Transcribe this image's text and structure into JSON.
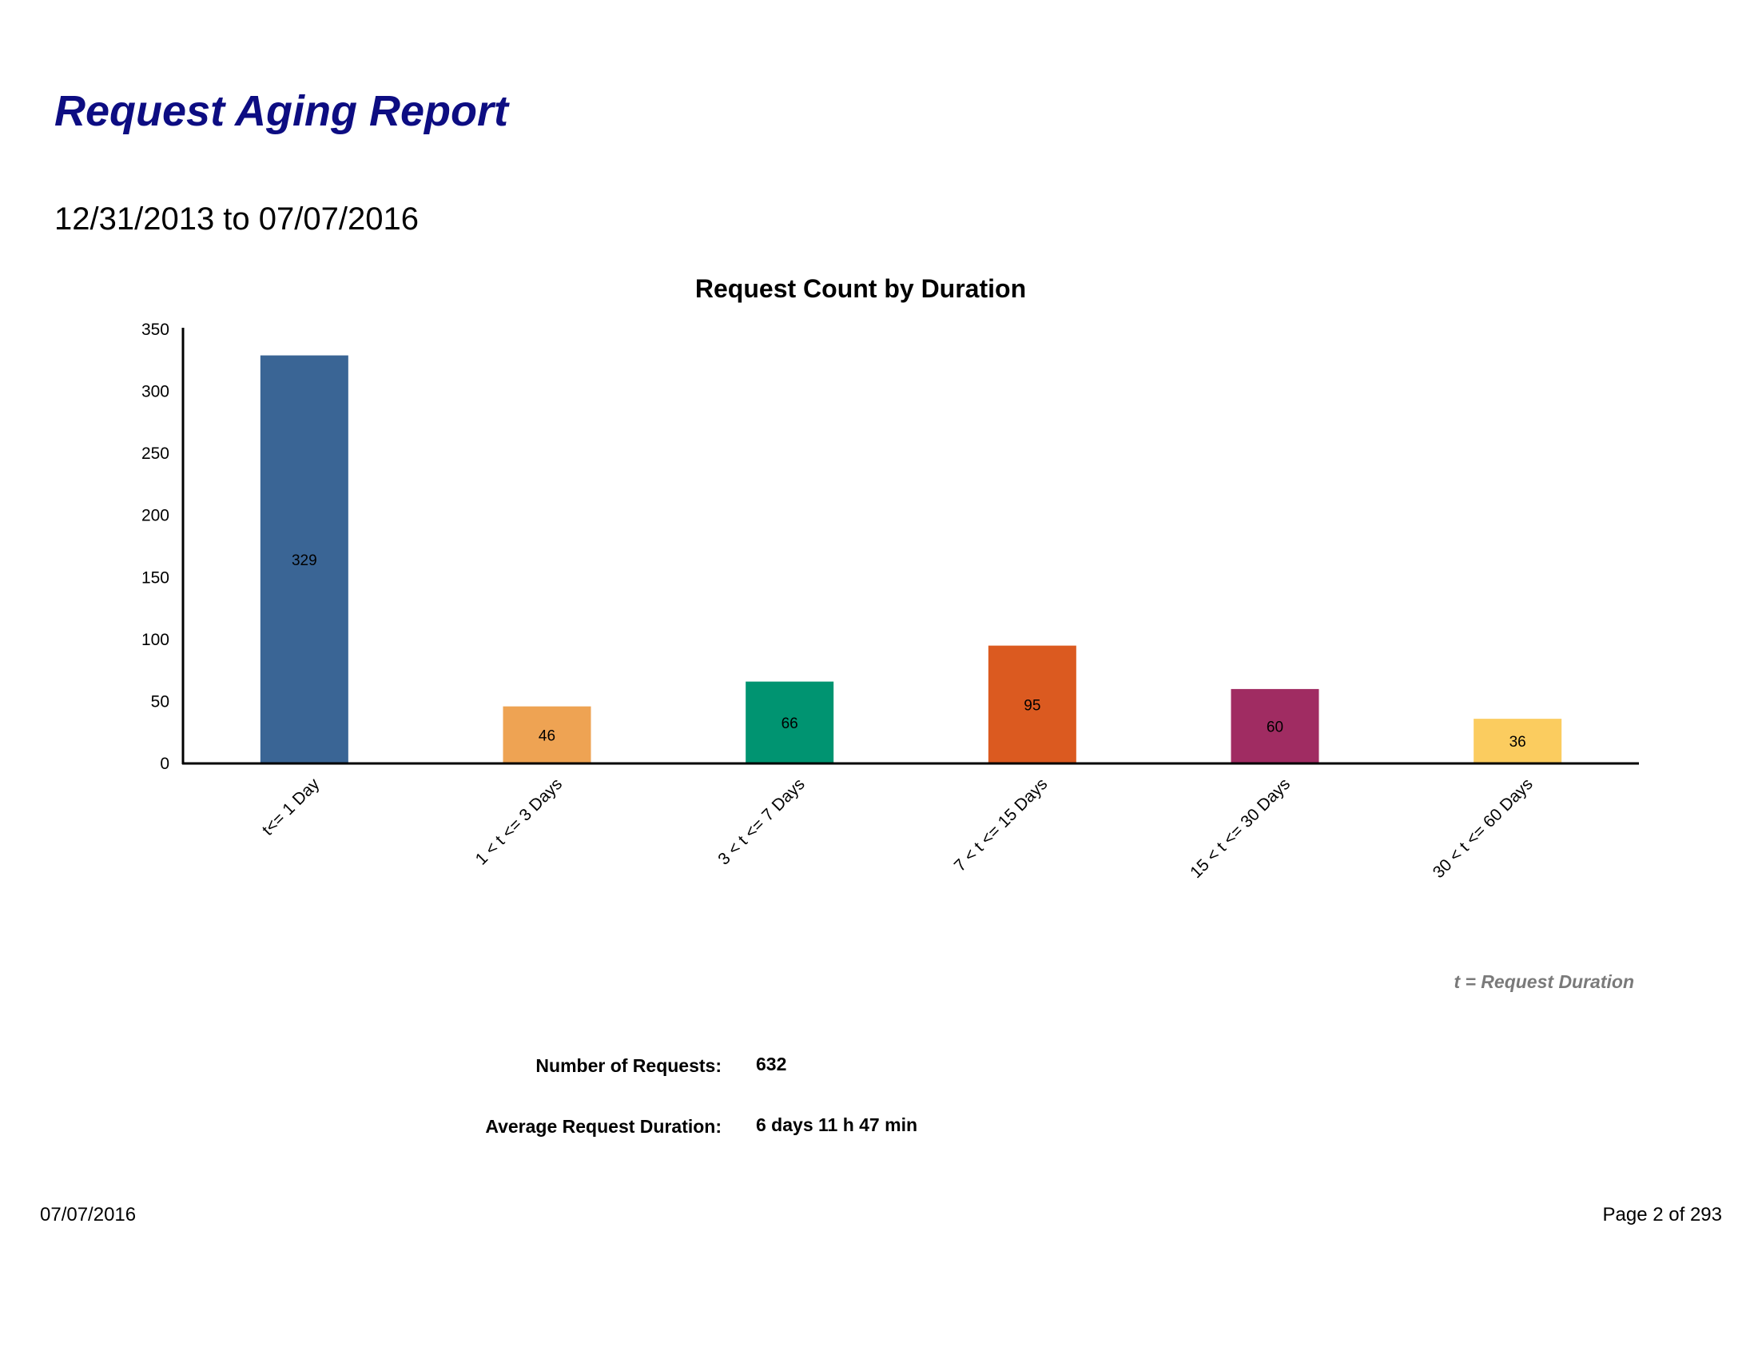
{
  "report": {
    "title": "Request Aging Report",
    "date_range": "12/31/2013 to 07/07/2016"
  },
  "chart_data": {
    "type": "bar",
    "title": "Request Count by Duration",
    "xlabel": "",
    "ylabel": "",
    "ylim": [
      0,
      350
    ],
    "yticks": [
      0,
      50,
      100,
      150,
      200,
      250,
      300,
      350
    ],
    "categories": [
      "t<= 1 Day",
      "1 < t <= 3 Days",
      "3 < t <= 7 Days",
      "7 < t <= 15 Days",
      "15 < t <= 30 Days",
      "30 < t <= 60 Days"
    ],
    "values": [
      329,
      46,
      66,
      95,
      60,
      36
    ],
    "colors": [
      "#3a6595",
      "#eea353",
      "#009471",
      "#db5a20",
      "#a02c62",
      "#fbcc5f"
    ],
    "grid": false,
    "note": "t = Request Duration"
  },
  "summary": {
    "requests_label": "Number of Requests:",
    "requests_value": "632",
    "duration_label": "Average Request Duration:",
    "duration_value": "6 days 11 h 47 min"
  },
  "footer": {
    "date": "07/07/2016",
    "page": "Page 2 of 293"
  }
}
